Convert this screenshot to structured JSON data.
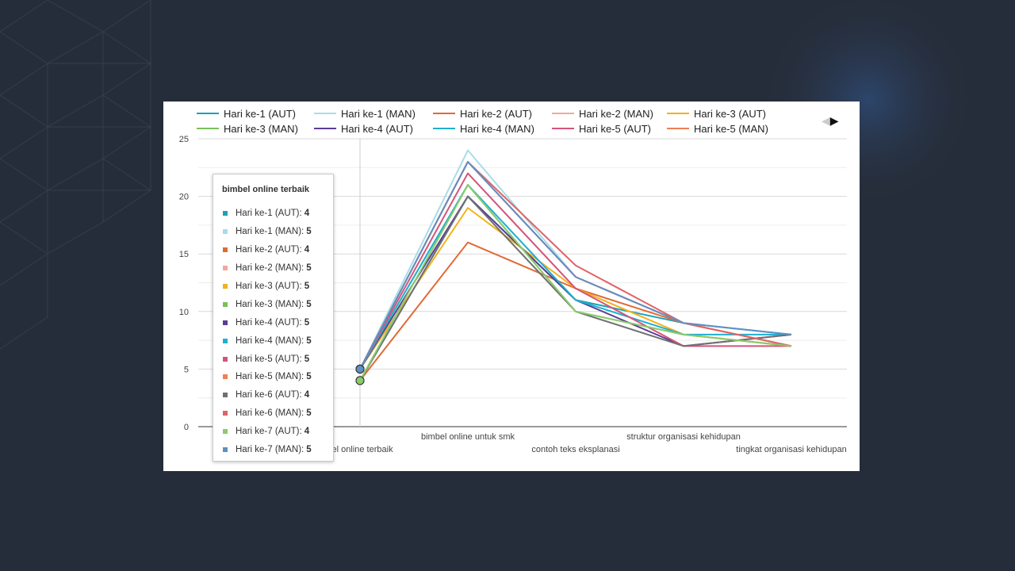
{
  "chart_data": {
    "type": "line",
    "categories": [
      "bimbel online terbaik",
      "bimbel online untuk smk",
      "contoh teks eksplanasi",
      "struktur organisasi kehidupan",
      "tingkat organisasi kehidupan"
    ],
    "category_labels": [
      "bel online terbaik",
      "bimbel online untuk smk",
      "contoh teks eksplanasi",
      "struktur organisasi kehidupan",
      "tingkat organisasi kehidupan"
    ],
    "ylim": [
      0,
      25
    ],
    "yticks": [
      0,
      5,
      10,
      15,
      20,
      25
    ],
    "series": [
      {
        "name": "Hari ke-1 (AUT)",
        "color": "#1aa3b8",
        "values": [
          4,
          20,
          11,
          9,
          8
        ]
      },
      {
        "name": "Hari ke-1 (MAN)",
        "color": "#a8dcea",
        "values": [
          5,
          24,
          13,
          9,
          8
        ]
      },
      {
        "name": "Hari ke-2 (AUT)",
        "color": "#e06a36",
        "values": [
          4,
          16,
          12,
          9,
          7
        ]
      },
      {
        "name": "Hari ke-2 (MAN)",
        "color": "#f2a89a",
        "values": [
          5,
          23,
          13,
          9,
          7
        ]
      },
      {
        "name": "Hari ke-3 (AUT)",
        "color": "#f2b21b",
        "values": [
          5,
          19,
          12,
          8,
          7
        ]
      },
      {
        "name": "Hari ke-3 (MAN)",
        "color": "#7cbf5a",
        "values": [
          5,
          21,
          10,
          8,
          7
        ]
      },
      {
        "name": "Hari ke-4 (AUT)",
        "color": "#5b3d95",
        "values": [
          5,
          20,
          11,
          7,
          8
        ]
      },
      {
        "name": "Hari ke-4 (MAN)",
        "color": "#1fb0d0",
        "values": [
          5,
          21,
          11,
          8,
          8
        ]
      },
      {
        "name": "Hari ke-5 (AUT)",
        "color": "#d35479",
        "values": [
          5,
          22,
          12,
          7,
          7
        ]
      },
      {
        "name": "Hari ke-5 (MAN)",
        "color": "#ef7f54",
        "values": [
          5,
          23,
          13,
          9,
          7
        ]
      },
      {
        "name": "Hari ke-6 (AUT)",
        "color": "#707070",
        "values": [
          4,
          20,
          10,
          7,
          8
        ]
      },
      {
        "name": "Hari ke-6 (MAN)",
        "color": "#e06466",
        "values": [
          5,
          23,
          14,
          9,
          7
        ]
      },
      {
        "name": "Hari ke-7 (AUT)",
        "color": "#8acb6c",
        "values": [
          4,
          21,
          10,
          8,
          7
        ]
      },
      {
        "name": "Hari ke-7 (MAN)",
        "color": "#5f8fc4",
        "values": [
          5,
          23,
          13,
          9,
          8
        ]
      }
    ],
    "legend_visible_count": 10,
    "tooltip": {
      "title": "bimbel online terbaik",
      "rows": [
        {
          "label": "Hari ke-1 (AUT):",
          "value": "4"
        },
        {
          "label": "Hari ke-1 (MAN):",
          "value": "5"
        },
        {
          "label": "Hari ke-2 (AUT):",
          "value": "4"
        },
        {
          "label": "Hari ke-2 (MAN):",
          "value": "5"
        },
        {
          "label": "Hari ke-3 (AUT):",
          "value": "5"
        },
        {
          "label": "Hari ke-3 (MAN):",
          "value": "5"
        },
        {
          "label": "Hari ke-4 (AUT):",
          "value": "5"
        },
        {
          "label": "Hari ke-4 (MAN):",
          "value": "5"
        },
        {
          "label": "Hari ke-5 (AUT):",
          "value": "5"
        },
        {
          "label": "Hari ke-5 (MAN):",
          "value": "5"
        },
        {
          "label": "Hari ke-6 (AUT):",
          "value": "4"
        },
        {
          "label": "Hari ke-6 (MAN):",
          "value": "5"
        },
        {
          "label": "Hari ke-7 (AUT):",
          "value": "4"
        },
        {
          "label": "Hari ke-7 (MAN):",
          "value": "5"
        }
      ]
    }
  }
}
